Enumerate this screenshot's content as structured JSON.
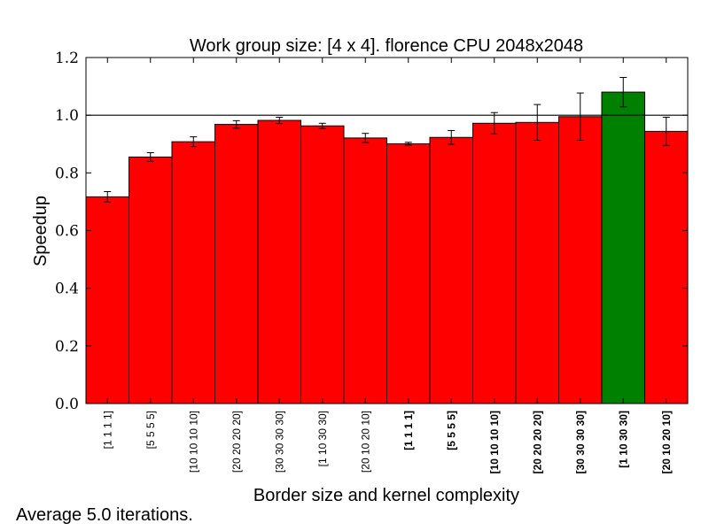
{
  "chart_data": {
    "type": "bar",
    "title": "Work group size: [4 x 4]. florence CPU 2048x2048",
    "xlabel": "Border size and kernel complexity",
    "ylabel": "Speedup",
    "ylim": [
      0.0,
      1.2
    ],
    "yticks": [
      "0.0",
      "0.2",
      "0.4",
      "0.6",
      "0.8",
      "1.0",
      "1.2"
    ],
    "reference_line": 1.0,
    "categories": [
      "[1 1 1 1]",
      "[5 5 5 5]",
      "[10 10 10 10]",
      "[20 20 20 20]",
      "[30 30 30 30]",
      "[1 10 30 30]",
      "[20 10 20 10]",
      "[1 1 1 1]",
      "[5 5 5 5]",
      "[10 10 10 10]",
      "[20 20 20 20]",
      "[30 30 30 30]",
      "[1 10 30 30]",
      "[20 10 20 10]"
    ],
    "bold_labels": [
      false,
      false,
      false,
      false,
      false,
      false,
      false,
      true,
      true,
      true,
      true,
      true,
      true,
      true
    ],
    "values": [
      0.717,
      0.855,
      0.908,
      0.968,
      0.982,
      0.963,
      0.921,
      0.901,
      0.923,
      0.972,
      0.975,
      0.995,
      1.08,
      0.944
    ],
    "errors": [
      0.018,
      0.015,
      0.017,
      0.013,
      0.011,
      0.009,
      0.016,
      0.005,
      0.024,
      0.037,
      0.062,
      0.082,
      0.051,
      0.049
    ],
    "bar_colors": [
      "#ff0000",
      "#ff0000",
      "#ff0000",
      "#ff0000",
      "#ff0000",
      "#ff0000",
      "#ff0000",
      "#ff0000",
      "#ff0000",
      "#ff0000",
      "#ff0000",
      "#ff0000",
      "#008000",
      "#ff0000"
    ],
    "grid": false,
    "legend": "none"
  },
  "footer_note": "Average 5.0 iterations."
}
